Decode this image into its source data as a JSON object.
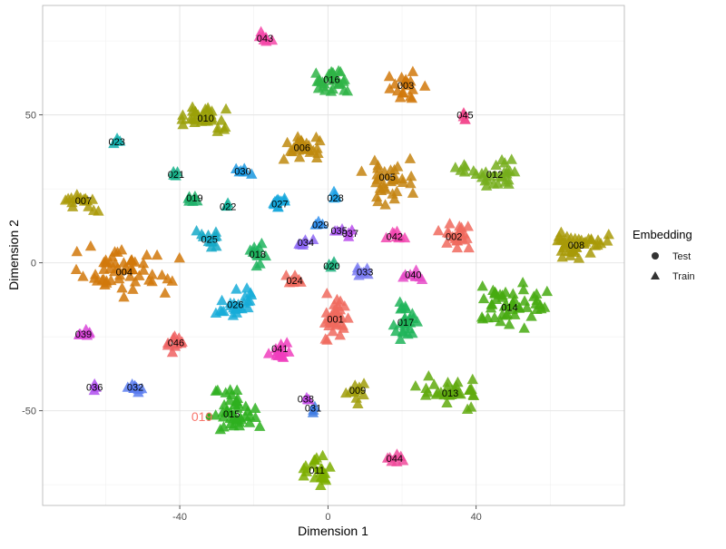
{
  "chart_data": {
    "type": "scatter",
    "xlabel": "Dimension 1",
    "ylabel": "Dimension 2",
    "xlim": [
      -77,
      80
    ],
    "ylim": [
      -82,
      87
    ],
    "x_ticks": [
      -40,
      0,
      40
    ],
    "y_ticks": [
      -50,
      0,
      50
    ],
    "x_tick_labels": [
      "-40",
      "0",
      "40"
    ],
    "y_tick_labels": [
      "-50",
      "0",
      "50"
    ],
    "grid": true,
    "legend": {
      "title": "Embedding",
      "placement": "right",
      "entries": [
        {
          "label": "Test",
          "shape": "circle"
        },
        {
          "label": "Train",
          "shape": "triangle"
        }
      ]
    },
    "clusters": [
      {
        "label": "001",
        "x": 2,
        "y": -19,
        "spread": [
          4.5,
          7
        ],
        "n": 34,
        "color": "#F06A5E"
      },
      {
        "label": "002",
        "x": 34,
        "y": 9,
        "spread": [
          4,
          3.5
        ],
        "n": 22,
        "color": "#F06A5E"
      },
      {
        "label": "003",
        "x": 21,
        "y": 60,
        "spread": [
          3.5,
          4
        ],
        "n": 18,
        "color": "#D1780A"
      },
      {
        "label": "004",
        "x": -55,
        "y": -3,
        "spread": [
          12,
          6.5
        ],
        "n": 55,
        "color": "#D1780A"
      },
      {
        "label": "005",
        "x": 16,
        "y": 29,
        "spread": [
          5.5,
          6
        ],
        "n": 34,
        "color": "#C48410"
      },
      {
        "label": "006",
        "x": -7,
        "y": 39,
        "spread": [
          5,
          4
        ],
        "n": 26,
        "color": "#BE8A0E"
      },
      {
        "label": "007",
        "x": -66,
        "y": 21,
        "spread": [
          5,
          2.5
        ],
        "n": 18,
        "color": "#AA9A08"
      },
      {
        "label": "008",
        "x": 67,
        "y": 6,
        "spread": [
          6.5,
          4.5
        ],
        "n": 38,
        "color": "#A89A08"
      },
      {
        "label": "009",
        "x": 8,
        "y": -43,
        "spread": [
          2.2,
          4
        ],
        "n": 10,
        "color": "#A09E0A"
      },
      {
        "label": "010",
        "x": -33,
        "y": 49,
        "spread": [
          5.5,
          4.5
        ],
        "n": 32,
        "color": "#9AA008"
      },
      {
        "label": "011",
        "x": -3,
        "y": -70,
        "spread": [
          3.5,
          4.5
        ],
        "n": 22,
        "color": "#7CAE00"
      },
      {
        "label": "012",
        "x": 45,
        "y": 30,
        "spread": [
          8,
          4
        ],
        "n": 30,
        "color": "#76AE1C"
      },
      {
        "label": "013",
        "x": 33,
        "y": -44,
        "spread": [
          7,
          4
        ],
        "n": 34,
        "color": "#60AA0E"
      },
      {
        "label": "014",
        "x": 49,
        "y": -15,
        "spread": [
          9,
          7
        ],
        "n": 48,
        "color": "#47AA10"
      },
      {
        "label": "015",
        "x": -26,
        "y": -51,
        "spread": [
          5.5,
          6.5
        ],
        "n": 42,
        "color": "#2EB020"
      },
      {
        "label": "016",
        "x": 1,
        "y": 62,
        "spread": [
          4.5,
          4.5
        ],
        "n": 30,
        "color": "#2FB446"
      },
      {
        "label": "017",
        "x": 21,
        "y": -20,
        "spread": [
          3,
          6
        ],
        "n": 24,
        "color": "#1FB459"
      },
      {
        "label": "018",
        "x": -19,
        "y": 3,
        "spread": [
          2.2,
          4
        ],
        "n": 12,
        "color": "#1FB45E"
      },
      {
        "label": "019",
        "x": -36,
        "y": 22,
        "spread": [
          2,
          2
        ],
        "n": 6,
        "color": "#1FB06A"
      },
      {
        "label": "020",
        "x": 1,
        "y": -1,
        "spread": [
          1.2,
          1.2
        ],
        "n": 4,
        "color": "#1CB07C"
      },
      {
        "label": "021",
        "x": -41,
        "y": 30,
        "spread": [
          1.2,
          1.2
        ],
        "n": 4,
        "color": "#16B28A"
      },
      {
        "label": "022",
        "x": -27,
        "y": 19,
        "spread": [
          1,
          1
        ],
        "n": 3,
        "color": "#11B29A"
      },
      {
        "label": "023",
        "x": -57,
        "y": 41,
        "spread": [
          1.3,
          1
        ],
        "n": 4,
        "color": "#12B0AE"
      },
      {
        "label": "024",
        "x": -9,
        "y": -6,
        "spread": [
          2.2,
          2.2
        ],
        "n": 8,
        "color": "#F06A5E"
      },
      {
        "label": "025",
        "x": -32,
        "y": 8,
        "spread": [
          2.5,
          3
        ],
        "n": 12,
        "color": "#16A9C8"
      },
      {
        "label": "026",
        "x": -25,
        "y": -14,
        "spread": [
          4,
          4.5
        ],
        "n": 26,
        "color": "#16ABD8"
      },
      {
        "label": "027",
        "x": -13,
        "y": 20,
        "spread": [
          2.5,
          2.5
        ],
        "n": 12,
        "color": "#17A8DD"
      },
      {
        "label": "028",
        "x": 2,
        "y": 22,
        "spread": [
          1.5,
          1.5
        ],
        "n": 6,
        "color": "#20A2E6"
      },
      {
        "label": "029",
        "x": -2,
        "y": 13,
        "spread": [
          1.2,
          1.2
        ],
        "n": 4,
        "color": "#3290EE"
      },
      {
        "label": "030",
        "x": -23,
        "y": 31,
        "spread": [
          1.8,
          1.8
        ],
        "n": 6,
        "color": "#1A98E0"
      },
      {
        "label": "031",
        "x": -4,
        "y": -49,
        "spread": [
          1,
          1.3
        ],
        "n": 3,
        "color": "#3D7AE2"
      },
      {
        "label": "032",
        "x": -52,
        "y": -42,
        "spread": [
          2.2,
          2.2
        ],
        "n": 10,
        "color": "#5A7DF0"
      },
      {
        "label": "033",
        "x": 10,
        "y": -3,
        "spread": [
          2,
          1.5
        ],
        "n": 7,
        "color": "#7A7BF2"
      },
      {
        "label": "034",
        "x": -6,
        "y": 7,
        "spread": [
          1.8,
          1.5
        ],
        "n": 6,
        "color": "#8C66F3"
      },
      {
        "label": "035",
        "x": 3,
        "y": 11,
        "spread": [
          1,
          1
        ],
        "n": 3,
        "color": "#A858F0"
      },
      {
        "label": "036",
        "x": -63,
        "y": -42,
        "spread": [
          0.8,
          0.8
        ],
        "n": 3,
        "color": "#B04FEE"
      },
      {
        "label": "037",
        "x": 6,
        "y": 10,
        "spread": [
          1,
          1
        ],
        "n": 3,
        "color": "#B84CEC"
      },
      {
        "label": "038",
        "x": -6,
        "y": -46,
        "spread": [
          0.8,
          1
        ],
        "n": 3,
        "color": "#C34BE8"
      },
      {
        "label": "039",
        "x": -66,
        "y": -24,
        "spread": [
          1.8,
          1.3
        ],
        "n": 7,
        "color": "#D846D8"
      },
      {
        "label": "040",
        "x": 23,
        "y": -4,
        "spread": [
          2.2,
          2
        ],
        "n": 8,
        "color": "#E64BC8"
      },
      {
        "label": "041",
        "x": -13,
        "y": -29,
        "spread": [
          2.5,
          3
        ],
        "n": 12,
        "color": "#F03DBD"
      },
      {
        "label": "042",
        "x": 18,
        "y": 9,
        "spread": [
          2,
          1.8
        ],
        "n": 8,
        "color": "#F246B0"
      },
      {
        "label": "043",
        "x": -17,
        "y": 76,
        "spread": [
          2,
          2
        ],
        "n": 8,
        "color": "#F446A8"
      },
      {
        "label": "044",
        "x": 18,
        "y": -66,
        "spread": [
          2,
          1.5
        ],
        "n": 7,
        "color": "#F04A9B"
      },
      {
        "label": "045",
        "x": 37,
        "y": 50,
        "spread": [
          1.5,
          1.5
        ],
        "n": 5,
        "color": "#F24A8E"
      },
      {
        "label": "046",
        "x": -41,
        "y": -27,
        "spread": [
          2,
          3.5
        ],
        "n": 10,
        "color": "#F06262"
      }
    ],
    "test_marks": [
      {
        "label": "019",
        "x": -34,
        "y": -52,
        "color": "#F8766D",
        "test_only": true
      }
    ]
  }
}
